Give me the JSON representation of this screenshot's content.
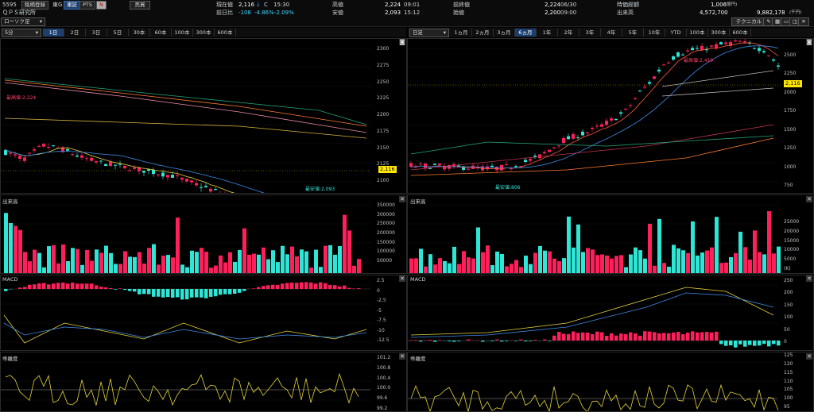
{
  "header": {
    "code": "5595",
    "market_btn": "銘柄登録",
    "exchange": "東G",
    "tab_tse": "東証",
    "tab_pts": "PTS",
    "trade_btn": "売買",
    "company": "ＱＰＳ研究所",
    "current_label": "現在値",
    "current_value": "2,116",
    "current_arrow": "↓",
    "current_flag": "C",
    "current_time": "15:30",
    "change_label": "前日比",
    "change_value": "-108",
    "change_pct1": "-4.86%",
    "change_pct2": "-2.09%",
    "high_label": "高値",
    "high_value": "2,224",
    "high_time": "09:01",
    "low_label": "安値",
    "low_value": "2,093",
    "low_time": "15:12",
    "prev_close_label": "前終値",
    "prev_close_value": "2,224",
    "prev_close_date": "06/30",
    "open_label": "始値",
    "open_value": "2,200",
    "open_time": "09:00",
    "mcap_label": "時価総額",
    "mcap_value": "1,006",
    "mcap_unit": "(億円)",
    "volume_label": "出来高",
    "volume_value": "4,572,700",
    "turnover_value": "9,882,178",
    "turnover_unit": "(千円)",
    "chart_type": "ローソク足",
    "technical_btn": "テクニカル"
  },
  "left": {
    "interval": "5分",
    "tabs": [
      "1日",
      "2日",
      "3日",
      "5日",
      "30本",
      "60本",
      "100本",
      "300本",
      "600本"
    ],
    "active_tab": "1日",
    "price_axis": [
      "2300",
      "2275",
      "2250",
      "2225",
      "2200",
      "2175",
      "2150",
      "2125",
      "2100"
    ],
    "price_tag": "2,116",
    "high_annot": "最高値:2,224",
    "low_annot": "最安値:2,093",
    "volume_title": "出来高",
    "volume_axis": [
      "350000",
      "300000",
      "250000",
      "200000",
      "150000",
      "100000",
      "50000"
    ],
    "macd_title": "MACD",
    "macd_axis": [
      "2.5",
      "0",
      "-2.5",
      "-5",
      "-7.5",
      "-10",
      "-12.5"
    ],
    "osc_title": "乖離度",
    "osc_axis": [
      "101.2",
      "100.8",
      "100.4",
      "100.0",
      "99.6",
      "99.2"
    ]
  },
  "right": {
    "interval": "日足",
    "tabs": [
      "1ヵ月",
      "2ヵ月",
      "3ヵ月",
      "6ヵ月",
      "1年",
      "2年",
      "3年",
      "4年",
      "5年",
      "10年",
      "YTD",
      "100本",
      "300本",
      "600本"
    ],
    "active_tab": "6ヵ月",
    "price_axis": [
      "2500",
      "2250",
      "2000",
      "1750",
      "1500",
      "1250",
      "1000",
      "750"
    ],
    "price_tag": "2,116",
    "high_annot": "最高値:2,419",
    "low_annot": "最安値:806",
    "volume_title": "出来高",
    "volume_axis": [
      "25000",
      "20000",
      "15000",
      "10000",
      "5000",
      "(K)"
    ],
    "macd_title": "MACD",
    "macd_axis": [
      "250",
      "200",
      "150",
      "100",
      "50",
      "0"
    ],
    "osc_title": "乖離度",
    "osc_axis": [
      "125",
      "120",
      "115",
      "110",
      "105",
      "100",
      "95"
    ]
  },
  "colors": {
    "up": "#2ee6d6",
    "down": "#ff1f5a",
    "ma_short": "#e5d43a",
    "ma_mid": "#3f8be6",
    "ma_long": "#ff7b2e",
    "ma_xlong": "#22a57a",
    "ma_pink": "#e98aa8"
  }
}
